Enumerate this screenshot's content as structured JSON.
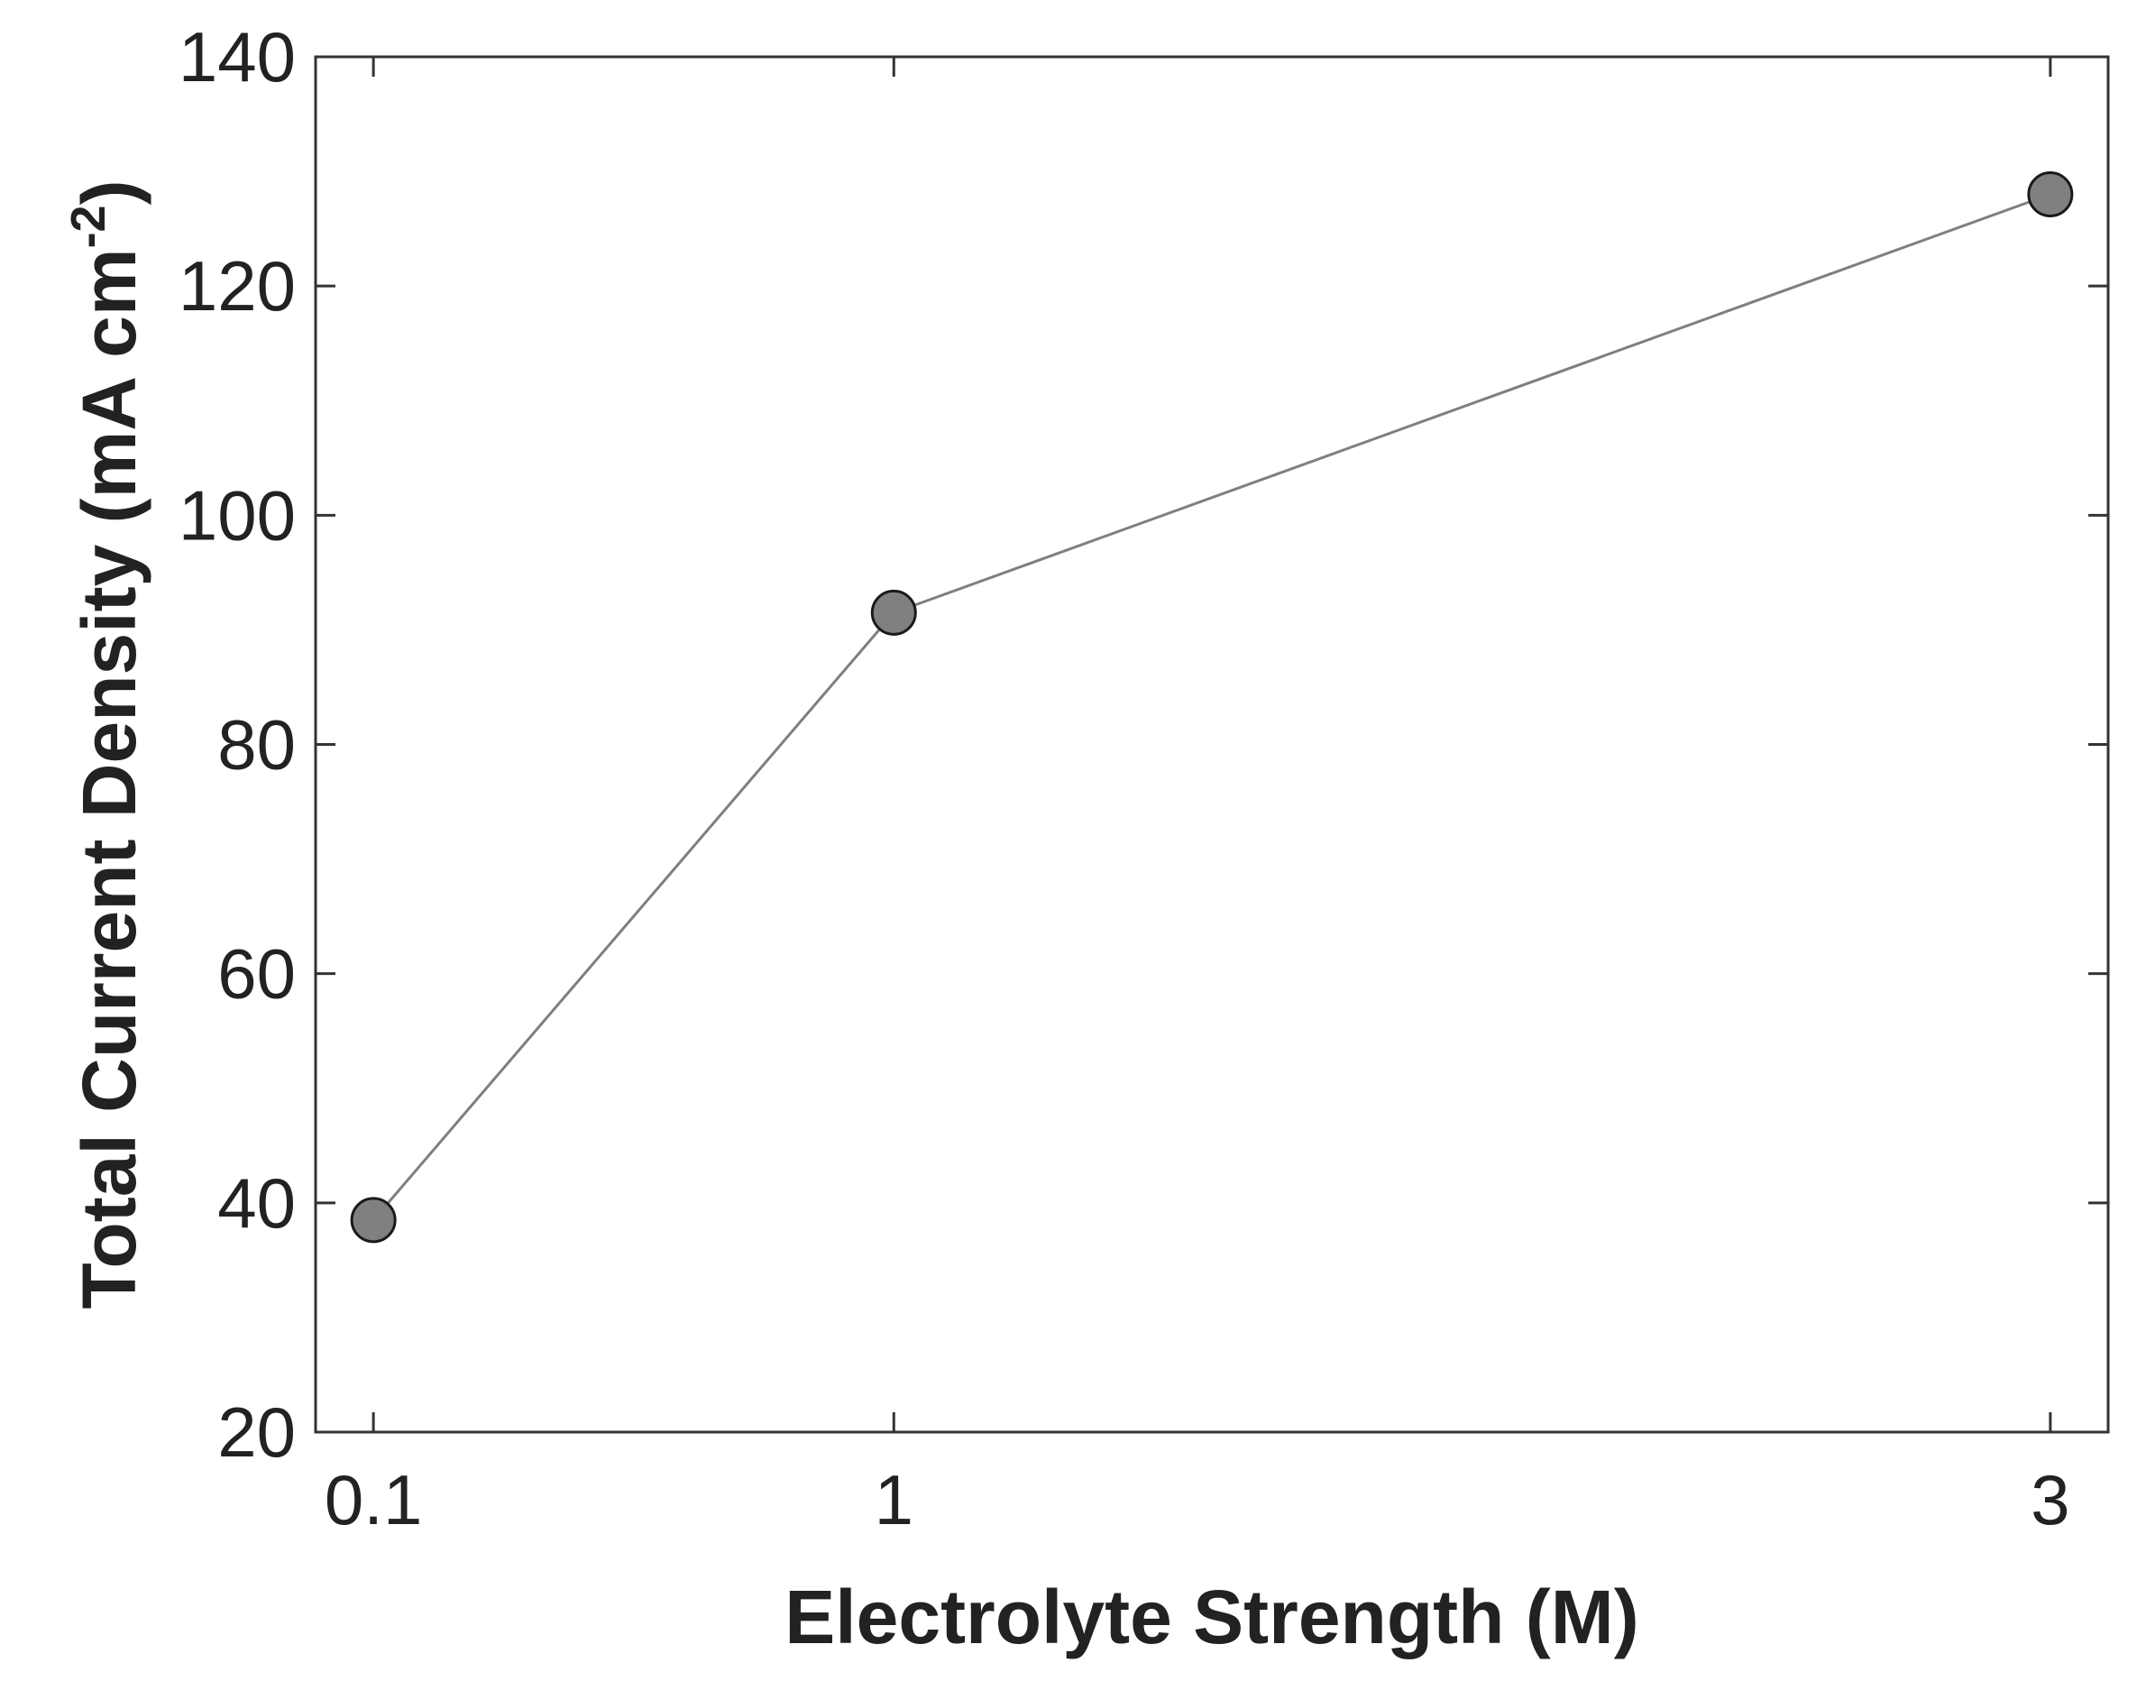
{
  "chart_data": {
    "type": "line",
    "title": "",
    "xlabel": "Electrolyte Strength (M)",
    "ylabel_main": "Total Current Density (mA cm",
    "ylabel_sup": "-2",
    "ylabel_close": ")",
    "x_positions": [
      0.1,
      1,
      3
    ],
    "x_tick_labels": [
      "0.1",
      "1",
      "3"
    ],
    "xlim": [
      0.0,
      3.1
    ],
    "ylim": [
      20,
      140
    ],
    "y_ticks": [
      20,
      40,
      60,
      80,
      100,
      120,
      140
    ],
    "series": [
      {
        "x": [
          0.1,
          1,
          3
        ],
        "values": [
          38.5,
          91.5,
          128.0
        ]
      }
    ],
    "grid": false,
    "line_color": "#7f7f7f",
    "marker_fill": "#808080",
    "marker_stroke": "#1a1a1a",
    "axis_color": "#333333"
  }
}
